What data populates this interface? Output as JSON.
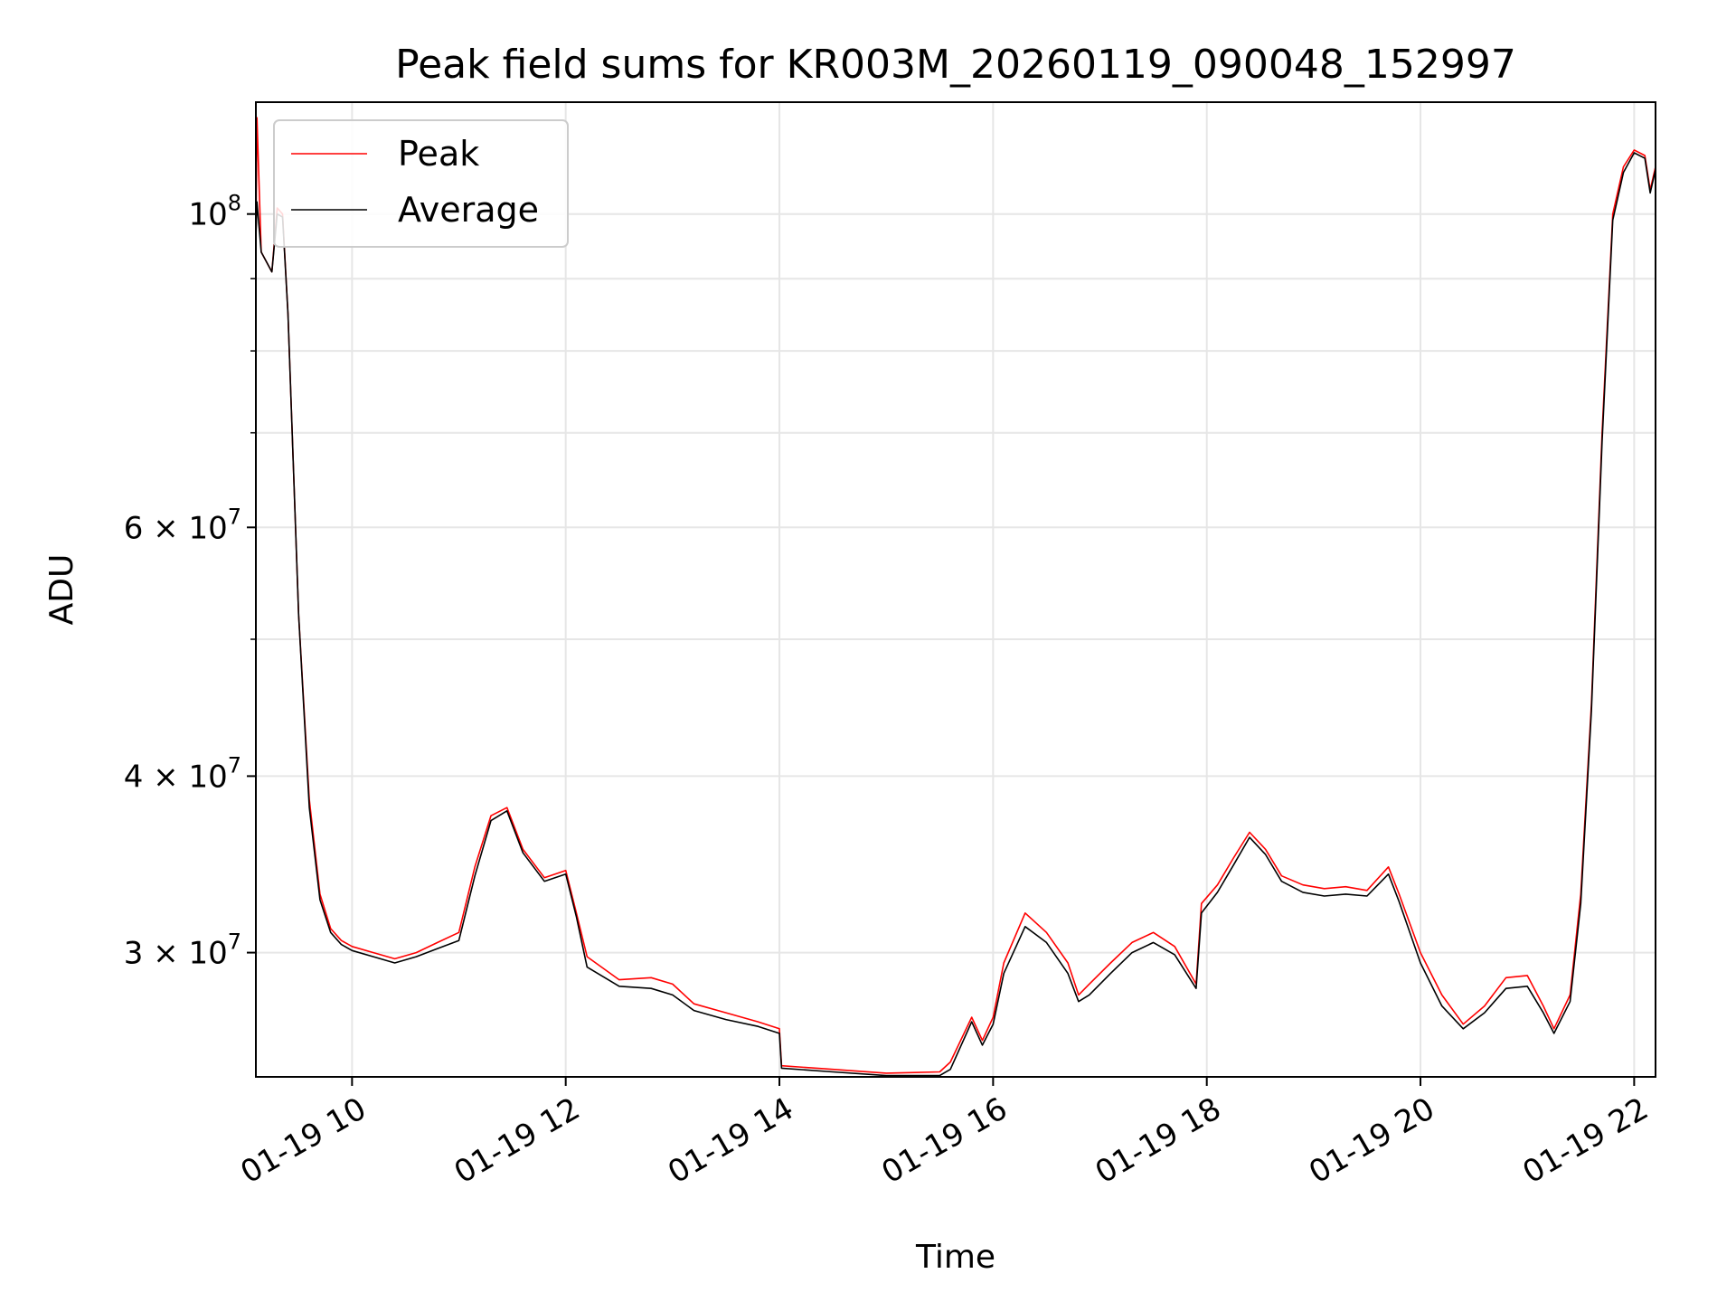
{
  "chart_data": {
    "type": "line",
    "title": "Peak field sums for KR003M_20260119_090048_152997",
    "xlabel": "Time",
    "ylabel": "ADU",
    "yscale": "log",
    "xlim": [
      9.1,
      22.2
    ],
    "ylim": [
      24500000.0,
      120000000.0
    ],
    "grid": true,
    "legend_position": "upper-left",
    "x_ticks": [
      {
        "value": 10,
        "label": "01-19 10"
      },
      {
        "value": 12,
        "label": "01-19 12"
      },
      {
        "value": 14,
        "label": "01-19 14"
      },
      {
        "value": 16,
        "label": "01-19 16"
      },
      {
        "value": 18,
        "label": "01-19 18"
      },
      {
        "value": 20,
        "label": "01-19 20"
      },
      {
        "value": 22,
        "label": "01-19 22"
      }
    ],
    "y_ticks": [
      {
        "value": 100000000,
        "base": "10",
        "exp": "8",
        "coef": ""
      },
      {
        "value": 60000000,
        "base": "10",
        "exp": "7",
        "coef": "6 × "
      },
      {
        "value": 40000000,
        "base": "10",
        "exp": "7",
        "coef": "4 × "
      },
      {
        "value": 30000000,
        "base": "10",
        "exp": "7",
        "coef": "3 × "
      }
    ],
    "y_minor_ticks": [
      50000000,
      70000000,
      80000000,
      90000000
    ],
    "series": [
      {
        "name": "Peak",
        "color": "#ff0000",
        "x": [
          9.1,
          9.11,
          9.15,
          9.25,
          9.3,
          9.35,
          9.4,
          9.5,
          9.6,
          9.7,
          9.8,
          9.9,
          10.0,
          10.2,
          10.4,
          10.6,
          10.8,
          11.0,
          11.15,
          11.3,
          11.45,
          11.6,
          11.8,
          12.0,
          12.1,
          12.2,
          12.5,
          12.8,
          13.0,
          13.2,
          13.5,
          13.8,
          14.0,
          14.02,
          14.5,
          15.0,
          15.5,
          15.6,
          15.8,
          15.9,
          16.0,
          16.1,
          16.3,
          16.5,
          16.7,
          16.8,
          16.9,
          17.1,
          17.3,
          17.5,
          17.7,
          17.9,
          17.95,
          18.1,
          18.25,
          18.4,
          18.55,
          18.7,
          18.9,
          19.1,
          19.3,
          19.5,
          19.7,
          19.8,
          20.0,
          20.2,
          20.4,
          20.6,
          20.8,
          21.0,
          21.15,
          21.25,
          21.4,
          21.5,
          21.6,
          21.7,
          21.8,
          21.9,
          22.0,
          22.1,
          22.15,
          22.2
        ],
        "y": [
          96000000,
          117000000,
          94000000,
          91000000,
          101000000,
          100000000,
          85000000,
          52000000,
          38500000,
          33000000,
          31200000,
          30600000,
          30300000,
          30000000,
          29700000,
          30000000,
          30500000,
          31000000,
          34500000,
          37500000,
          38000000,
          35500000,
          33900000,
          34300000,
          32000000,
          29800000,
          28700000,
          28800000,
          28500000,
          27600000,
          27200000,
          26800000,
          26500000,
          24950000,
          24800000,
          24650000,
          24700000,
          25100000,
          27000000,
          26000000,
          27000000,
          29500000,
          32000000,
          31000000,
          29500000,
          28000000,
          28500000,
          29500000,
          30500000,
          31000000,
          30300000,
          28500000,
          32500000,
          33500000,
          35000000,
          36500000,
          35500000,
          34000000,
          33500000,
          33300000,
          33400000,
          33200000,
          34500000,
          33000000,
          30000000,
          28000000,
          26700000,
          27500000,
          28800000,
          28900000,
          27500000,
          26500000,
          28000000,
          33000000,
          45000000,
          70000000,
          100000000,
          108000000,
          111000000,
          110000000,
          104000000,
          108000000
        ]
      },
      {
        "name": "Average",
        "color": "#000000",
        "x": [
          9.1,
          9.11,
          9.15,
          9.25,
          9.3,
          9.35,
          9.4,
          9.5,
          9.6,
          9.7,
          9.8,
          9.9,
          10.0,
          10.2,
          10.4,
          10.6,
          10.8,
          11.0,
          11.15,
          11.3,
          11.45,
          11.6,
          11.8,
          12.0,
          12.1,
          12.2,
          12.5,
          12.8,
          13.0,
          13.2,
          13.5,
          13.8,
          14.0,
          14.02,
          14.5,
          15.0,
          15.5,
          15.6,
          15.8,
          15.9,
          16.0,
          16.1,
          16.3,
          16.5,
          16.7,
          16.8,
          16.9,
          17.1,
          17.3,
          17.5,
          17.7,
          17.9,
          17.95,
          18.1,
          18.25,
          18.4,
          18.55,
          18.7,
          18.9,
          19.1,
          19.3,
          19.5,
          19.7,
          19.8,
          20.0,
          20.2,
          20.4,
          20.6,
          20.8,
          21.0,
          21.15,
          21.25,
          21.4,
          21.5,
          21.6,
          21.7,
          21.8,
          21.9,
          22.0,
          22.1,
          22.15,
          22.2
        ],
        "y": [
          96000000,
          102000000,
          94000000,
          91000000,
          100000000,
          99500000,
          85000000,
          52000000,
          38000000,
          32700000,
          31000000,
          30400000,
          30100000,
          29800000,
          29500000,
          29800000,
          30200000,
          30600000,
          34000000,
          37200000,
          37800000,
          35300000,
          33700000,
          34100000,
          31800000,
          29300000,
          28400000,
          28300000,
          28000000,
          27300000,
          26900000,
          26600000,
          26300000,
          24850000,
          24700000,
          24550000,
          24550000,
          24800000,
          26800000,
          25800000,
          26700000,
          29000000,
          31300000,
          30500000,
          29000000,
          27700000,
          28000000,
          29000000,
          30000000,
          30500000,
          29900000,
          28300000,
          32000000,
          33100000,
          34600000,
          36200000,
          35200000,
          33700000,
          33100000,
          32900000,
          33000000,
          32900000,
          34100000,
          32600000,
          29500000,
          27500000,
          26500000,
          27200000,
          28300000,
          28400000,
          27200000,
          26300000,
          27700000,
          32500000,
          44500000,
          69000000,
          99000000,
          107000000,
          110500000,
          109500000,
          103500000,
          107500000
        ]
      }
    ]
  }
}
